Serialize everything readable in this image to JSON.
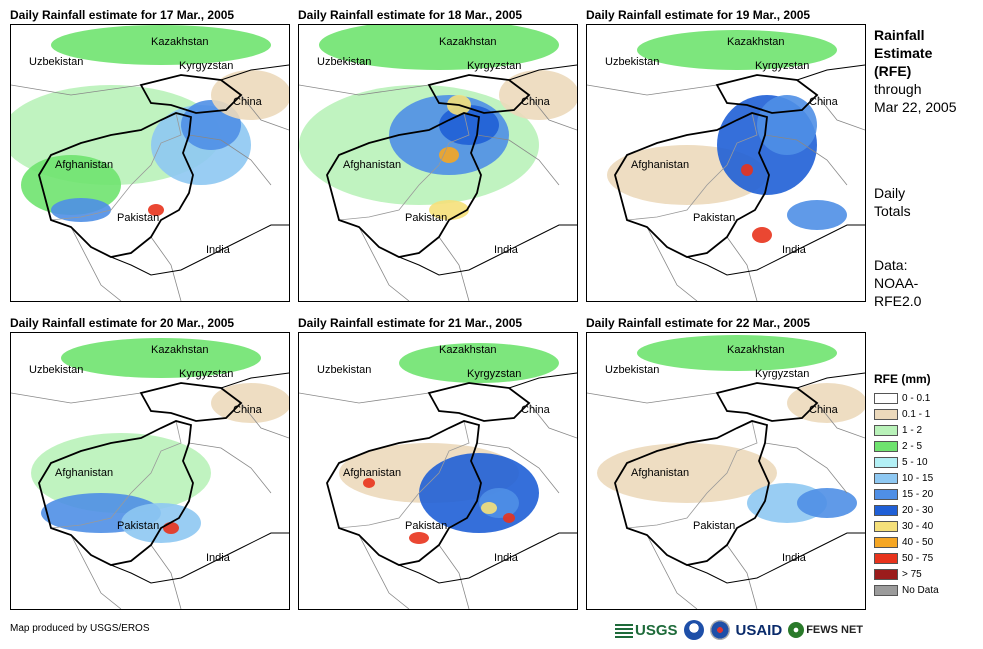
{
  "panels": [
    {
      "title": "Daily Rainfall estimate for 17 Mar., 2005"
    },
    {
      "title": "Daily Rainfall estimate for 18 Mar., 2005"
    },
    {
      "title": "Daily Rainfall estimate for 19 Mar., 2005"
    },
    {
      "title": "Daily Rainfall estimate for 20 Mar., 2005"
    },
    {
      "title": "Daily Rainfall estimate for 21 Mar., 2005"
    },
    {
      "title": "Daily Rainfall estimate for 22 Mar., 2005"
    }
  ],
  "map_labels": {
    "kazakhstan": "Kazakhstan",
    "uzbekistan": "Uzbekistan",
    "kyrgyzstan": "Kyrgyzstan",
    "china": "China",
    "afghanistan": "Afghanistan",
    "pakistan": "Pakistan",
    "india": "India"
  },
  "side": {
    "title_lines": [
      "Rainfall",
      "Estimate",
      "(RFE)"
    ],
    "through": "through",
    "date": "Mar 22, 2005",
    "daily": "Daily",
    "totals": "Totals",
    "data_label": "Data:",
    "data_source_1": "NOAA-",
    "data_source_2": "RFE2.0"
  },
  "legend": {
    "title": "RFE (mm)",
    "items": [
      {
        "label": "0 - 0.1",
        "color": "#ffffff"
      },
      {
        "label": "0.1 - 1",
        "color": "#ecd9bb"
      },
      {
        "label": "1 - 2",
        "color": "#b9f2b9"
      },
      {
        "label": "2 - 5",
        "color": "#6fe36f"
      },
      {
        "label": "5 - 10",
        "color": "#b3f0f5"
      },
      {
        "label": "10 - 15",
        "color": "#8ec8f2"
      },
      {
        "label": "15 - 20",
        "color": "#4f8fe6"
      },
      {
        "label": "20 - 30",
        "color": "#1f5fd6"
      },
      {
        "label": "30 - 40",
        "color": "#f5e07a"
      },
      {
        "label": "40 - 50",
        "color": "#f5a623"
      },
      {
        "label": "50 - 75",
        "color": "#e8331c"
      },
      {
        "label": "> 75",
        "color": "#9b1c1c"
      },
      {
        "label": "No Data",
        "color": "#9b9b9b"
      }
    ]
  },
  "credit": "Map produced by USGS/EROS",
  "logos": {
    "usgs": "USGS",
    "usaid": "USAID",
    "fews": "FEWS NET"
  }
}
